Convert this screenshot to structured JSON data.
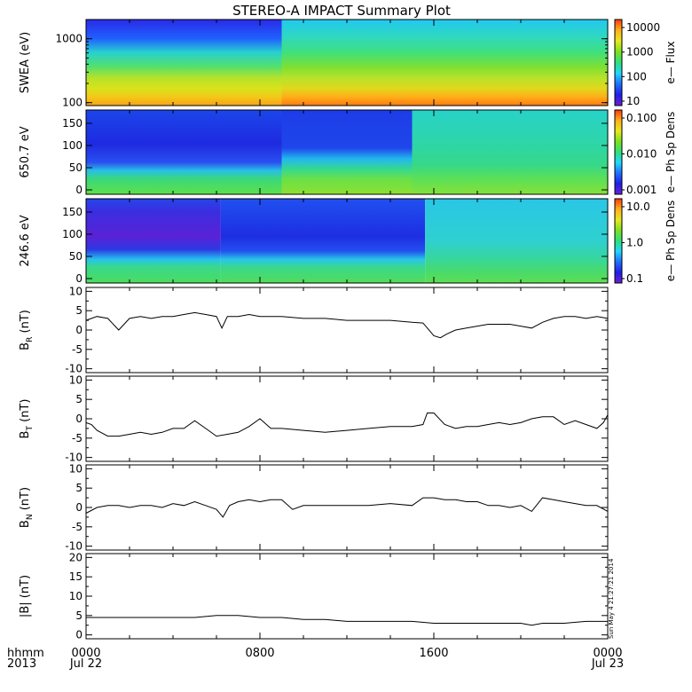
{
  "title": "STEREO-A IMPACT Summary Plot",
  "x_axis": {
    "row1_label": "hhmm",
    "row2_label": "2013",
    "ticks": [
      {
        "hours": 0,
        "label": "0000",
        "sublabel": "Jul 22"
      },
      {
        "hours": 8,
        "label": "0800",
        "sublabel": ""
      },
      {
        "hours": 16,
        "label": "1600",
        "sublabel": ""
      },
      {
        "hours": 24,
        "label": "0000",
        "sublabel": "Jul 23"
      }
    ],
    "range_hours": [
      0,
      24
    ]
  },
  "timestamp": "Sun May  4 21:27:21 2014",
  "colors": {
    "colormap": [
      "#6a1fd6",
      "#1f1fe8",
      "#1e6fff",
      "#20d8ff",
      "#2ee07a",
      "#7de020",
      "#e8e820",
      "#ffb01a",
      "#ff3a10"
    ]
  },
  "chart_data": [
    {
      "type": "heatmap",
      "ylabel": "SWEA (eV)",
      "yscale": "log",
      "ylim": [
        90,
        2000
      ],
      "yticks": [
        "100",
        "1000"
      ],
      "colorbar_label": "e— Flux",
      "colorbar_ticks": [
        "10000",
        "1000",
        "100",
        "10"
      ],
      "description_values": {
        "x_hours": [
          0,
          2,
          4,
          6,
          8,
          9,
          12,
          16,
          20,
          24
        ],
        "y_energy_ev": [
          100,
          200,
          400,
          1000,
          2000
        ],
        "z_relative": [
          [
            0.92,
            0.92,
            0.92,
            0.93,
            0.94,
            0.95,
            0.95,
            0.97,
            0.98,
            0.96
          ],
          [
            0.72,
            0.72,
            0.72,
            0.72,
            0.74,
            0.76,
            0.76,
            0.78,
            0.78,
            0.77
          ],
          [
            0.62,
            0.62,
            0.63,
            0.62,
            0.62,
            0.63,
            0.63,
            0.64,
            0.64,
            0.63
          ],
          [
            0.44,
            0.44,
            0.44,
            0.44,
            0.44,
            0.46,
            0.47,
            0.48,
            0.48,
            0.48
          ],
          [
            0.12,
            0.12,
            0.12,
            0.12,
            0.12,
            0.42,
            0.42,
            0.43,
            0.43,
            0.43
          ]
        ]
      }
    },
    {
      "type": "heatmap",
      "ylabel": "650.7 eV",
      "ylim": [
        -10,
        180
      ],
      "yticks": [
        "0",
        "50",
        "100",
        "150"
      ],
      "colorbar_label": "e— Ph Sp Dens",
      "colorbar_ticks": [
        "0.100",
        "0.010",
        "0.001"
      ]
    },
    {
      "type": "heatmap",
      "ylabel": "246.6 eV",
      "ylim": [
        -10,
        180
      ],
      "yticks": [
        "0",
        "50",
        "100",
        "150"
      ],
      "colorbar_label": "e— Ph Sp Dens",
      "colorbar_ticks": [
        "10.0",
        "1.0",
        "0.1"
      ]
    },
    {
      "type": "line",
      "ylabel": "B_R (nT)",
      "ylim": [
        -11,
        11
      ],
      "yticks": [
        10,
        5,
        0,
        -5,
        -10
      ],
      "x_hours": [
        0,
        0.5,
        1,
        1.5,
        2,
        2.5,
        3,
        3.5,
        4,
        4.5,
        5,
        5.5,
        6,
        6.25,
        6.5,
        7,
        7.5,
        8,
        9,
        10,
        11,
        12,
        13,
        14,
        15,
        15.5,
        16,
        16.3,
        16.6,
        17,
        17.5,
        18,
        18.5,
        19,
        19.5,
        20,
        20.5,
        21,
        21.5,
        22,
        22.5,
        23,
        23.5,
        24
      ],
      "values": [
        2.5,
        3.5,
        3.0,
        0.0,
        3.0,
        3.5,
        3.0,
        3.5,
        3.5,
        4.0,
        4.5,
        4.0,
        3.5,
        0.5,
        3.5,
        3.5,
        4.0,
        3.5,
        3.5,
        3.0,
        3.0,
        2.5,
        2.5,
        2.5,
        2.0,
        1.8,
        -1.5,
        -2.0,
        -1.0,
        0.0,
        0.5,
        1.0,
        1.5,
        1.5,
        1.5,
        1.0,
        0.5,
        2.0,
        3.0,
        3.5,
        3.5,
        3.0,
        3.5,
        3.0
      ]
    },
    {
      "type": "line",
      "ylabel": "B_T (nT)",
      "ylim": [
        -11,
        11
      ],
      "yticks": [
        10,
        5,
        0,
        -5,
        -10
      ],
      "x_hours": [
        0,
        0.25,
        0.5,
        1,
        1.5,
        2,
        2.5,
        3,
        3.5,
        4,
        4.5,
        5,
        5.5,
        6,
        6.5,
        7,
        7.5,
        8,
        8.5,
        9,
        10,
        11,
        12,
        13,
        14,
        15,
        15.5,
        15.7,
        16,
        16.5,
        17,
        17.5,
        18,
        18.5,
        19,
        19.5,
        20,
        20.5,
        21,
        21.5,
        22,
        22.5,
        23,
        23.5,
        23.8,
        24
      ],
      "values": [
        -1.0,
        -1.5,
        -3.0,
        -4.5,
        -4.5,
        -4.0,
        -3.5,
        -4.0,
        -3.5,
        -2.5,
        -2.5,
        -0.5,
        -2.5,
        -4.5,
        -4.0,
        -3.5,
        -2.0,
        0.0,
        -2.5,
        -2.5,
        -3.0,
        -3.5,
        -3.0,
        -2.5,
        -2.0,
        -2.0,
        -1.5,
        1.5,
        1.5,
        -1.5,
        -2.5,
        -2.0,
        -2.0,
        -1.5,
        -1.0,
        -1.5,
        -1.0,
        0.0,
        0.5,
        0.5,
        -1.5,
        -0.5,
        -1.5,
        -2.5,
        -1.0,
        1.0
      ]
    },
    {
      "type": "line",
      "ylabel": "B_N (nT)",
      "ylim": [
        -11,
        11
      ],
      "yticks": [
        10,
        5,
        0,
        -5,
        -10
      ],
      "x_hours": [
        0,
        0.5,
        1,
        1.5,
        2,
        2.5,
        3,
        3.5,
        4,
        4.5,
        5,
        5.5,
        6,
        6.3,
        6.6,
        7,
        7.5,
        8,
        8.5,
        9,
        9.5,
        10,
        11,
        12,
        13,
        14,
        15,
        15.5,
        16,
        16.5,
        17,
        17.5,
        18,
        18.5,
        19,
        19.5,
        20,
        20.5,
        21,
        21.5,
        22,
        22.5,
        23,
        23.5,
        24
      ],
      "values": [
        -1.5,
        0.0,
        0.5,
        0.5,
        0.0,
        0.5,
        0.5,
        0.0,
        1.0,
        0.5,
        1.5,
        0.5,
        -0.5,
        -2.5,
        0.5,
        1.5,
        2.0,
        1.5,
        2.0,
        2.0,
        -0.5,
        0.5,
        0.5,
        0.5,
        0.5,
        1.0,
        0.5,
        2.5,
        2.5,
        2.0,
        2.0,
        1.5,
        1.5,
        0.5,
        0.5,
        0.0,
        0.5,
        -1.0,
        2.5,
        2.0,
        1.5,
        1.0,
        0.5,
        0.5,
        -1.0
      ]
    },
    {
      "type": "line",
      "ylabel": "|B| (nT)",
      "ylim": [
        -1,
        21
      ],
      "yticks": [
        20,
        15,
        10,
        5,
        0
      ],
      "x_hours": [
        0,
        1,
        2,
        3,
        4,
        5,
        6,
        7,
        8,
        9,
        10,
        11,
        12,
        13,
        14,
        15,
        16,
        17,
        18,
        19,
        20,
        20.5,
        21,
        22,
        23,
        24
      ],
      "values": [
        4.5,
        4.5,
        4.5,
        4.5,
        4.5,
        4.5,
        5.0,
        5.0,
        4.5,
        4.5,
        4.0,
        4.0,
        3.5,
        3.5,
        3.5,
        3.5,
        3.0,
        3.0,
        3.0,
        3.0,
        3.0,
        2.5,
        3.0,
        3.0,
        3.5,
        3.5
      ]
    }
  ]
}
